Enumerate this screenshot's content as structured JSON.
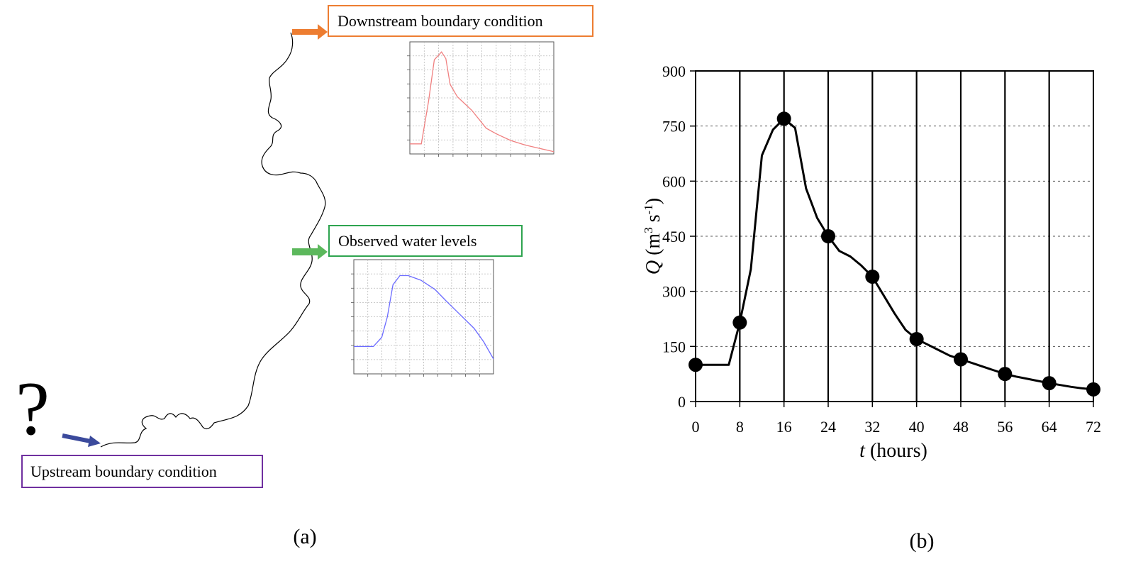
{
  "panel_a": {
    "label": "(a)",
    "question_mark": "?",
    "downstream": {
      "text": "Downstream boundary condition",
      "color": "#ed7d31"
    },
    "observed": {
      "text": "Observed water levels",
      "color": "#2ea44f"
    },
    "upstream": {
      "text": "Upstream boundary condition",
      "color": "#7030a0"
    },
    "upstream_arrow_color": "#3b4a9c",
    "downstream_arrow_color": "#ed7d31",
    "observed_arrow_color": "#5cb85c",
    "mini_chart_downstream": {
      "type": "line",
      "color": "#f08080",
      "points": [
        [
          0,
          0.09
        ],
        [
          0.08,
          0.09
        ],
        [
          0.13,
          0.47
        ],
        [
          0.17,
          0.84
        ],
        [
          0.22,
          0.91
        ],
        [
          0.25,
          0.85
        ],
        [
          0.28,
          0.62
        ],
        [
          0.33,
          0.51
        ],
        [
          0.38,
          0.45
        ],
        [
          0.43,
          0.39
        ],
        [
          0.53,
          0.23
        ],
        [
          0.6,
          0.18
        ],
        [
          0.7,
          0.12
        ],
        [
          0.8,
          0.08
        ],
        [
          0.9,
          0.05
        ],
        [
          1,
          0.02
        ]
      ]
    },
    "mini_chart_observed": {
      "type": "line",
      "color": "#6b6bff",
      "points": [
        [
          0,
          0.24
        ],
        [
          0.14,
          0.24
        ],
        [
          0.2,
          0.32
        ],
        [
          0.24,
          0.5
        ],
        [
          0.28,
          0.78
        ],
        [
          0.33,
          0.86
        ],
        [
          0.39,
          0.86
        ],
        [
          0.48,
          0.82
        ],
        [
          0.58,
          0.74
        ],
        [
          0.66,
          0.64
        ],
        [
          0.76,
          0.52
        ],
        [
          0.86,
          0.4
        ],
        [
          0.93,
          0.28
        ],
        [
          1,
          0.13
        ]
      ]
    }
  },
  "panel_b": {
    "label": "(b)"
  },
  "chart_data": {
    "type": "line",
    "xlabel_italic": "t",
    "xlabel_rest": " (hours)",
    "ylabel_italic": "Q",
    "ylabel_rest": " (m",
    "ylabel_sup1": "3",
    "ylabel_mid": " s",
    "ylabel_sup2": "-1",
    "ylabel_end": ")",
    "xlim": [
      0,
      72
    ],
    "ylim": [
      0,
      900
    ],
    "x_ticks": [
      "0",
      "8",
      "16",
      "24",
      "32",
      "40",
      "48",
      "56",
      "64",
      "72"
    ],
    "y_ticks": [
      "0",
      "150",
      "300",
      "450",
      "600",
      "750",
      "900"
    ],
    "vertical_lines_at": [
      8,
      16,
      24,
      32,
      40,
      48,
      56,
      64
    ],
    "horizontal_dashed_at": [
      150,
      300,
      450,
      600,
      750
    ],
    "line": {
      "x": [
        0,
        2,
        4,
        6,
        8,
        10,
        12,
        14,
        16,
        18,
        20,
        22,
        24,
        26,
        28,
        30,
        32,
        34,
        36,
        38,
        40,
        42,
        44,
        46,
        48,
        50,
        52,
        54,
        56,
        58,
        60,
        62,
        64,
        66,
        68,
        70,
        72
      ],
      "y": [
        100,
        100,
        100,
        100,
        215,
        360,
        670,
        740,
        770,
        745,
        580,
        500,
        450,
        410,
        395,
        370,
        340,
        290,
        240,
        195,
        170,
        155,
        140,
        125,
        115,
        105,
        95,
        85,
        75,
        68,
        62,
        56,
        50,
        45,
        40,
        36,
        33
      ]
    },
    "markers": {
      "x": [
        0,
        8,
        16,
        24,
        32,
        40,
        48,
        56,
        64,
        72
      ],
      "y": [
        100,
        215,
        770,
        450,
        340,
        170,
        115,
        75,
        50,
        33
      ]
    }
  }
}
